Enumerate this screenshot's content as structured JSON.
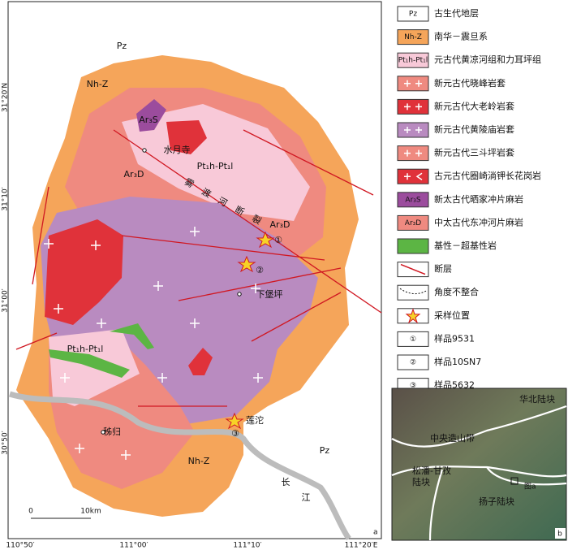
{
  "map": {
    "labels": [
      "Pz",
      "Nh-Z",
      "Ar₃S",
      "水月寺",
      "Pt₁h-Pt₁l",
      "Ar₃D",
      "雾",
      "渡",
      "河",
      "断",
      "裂",
      "Ar₃D",
      "①",
      "②",
      "下堡坪",
      "Pt₁h-Pt₁l",
      "莲沱",
      "③",
      "秭归",
      "Nh-Z",
      "Pz",
      "长",
      "江"
    ],
    "lat_labels": [
      "31°20′N",
      "31°10′",
      "31°00′",
      "30°50′"
    ],
    "lon_labels": [
      "110°50′",
      "111°00′",
      "111°10′",
      "111°20′E"
    ],
    "scale": [
      "0",
      "10km"
    ],
    "panel": "a"
  },
  "legend": {
    "items": [
      {
        "symbol": "Pz",
        "label": "古生代地层"
      },
      {
        "symbol": "Nh-Z",
        "label": "南华－震旦系"
      },
      {
        "symbol": "Pt₁h-Pt₁l",
        "label": "元古代黄凉河组和力耳坪组"
      },
      {
        "label": "新元古代晓峰岩套"
      },
      {
        "label": "新元古代大老岭岩套"
      },
      {
        "label": "新元古代黄陵庙岩套"
      },
      {
        "label": "新元古代三斗坪岩套"
      },
      {
        "label": "古元古代圈崎淌钾长花岗岩"
      },
      {
        "symbol": "Ar₃S",
        "label": "新太古代晒家冲片麻岩"
      },
      {
        "symbol": "Ar₃D",
        "label": "中太古代东冲河片麻岩"
      },
      {
        "label": "基性－超基性岩"
      },
      {
        "label": "断层"
      },
      {
        "label": "角度不整合"
      },
      {
        "label": "采样位置"
      },
      {
        "symbol": "①",
        "label": "样品9531"
      },
      {
        "symbol": "②",
        "label": "样品10SN7"
      },
      {
        "symbol": "③",
        "label": "样品5632"
      }
    ]
  },
  "inset": {
    "labels": [
      "华北陆块",
      "中央造山带",
      "松潘-甘孜",
      "陆块",
      "扬子陆块",
      "图a"
    ],
    "panel": "b"
  }
}
